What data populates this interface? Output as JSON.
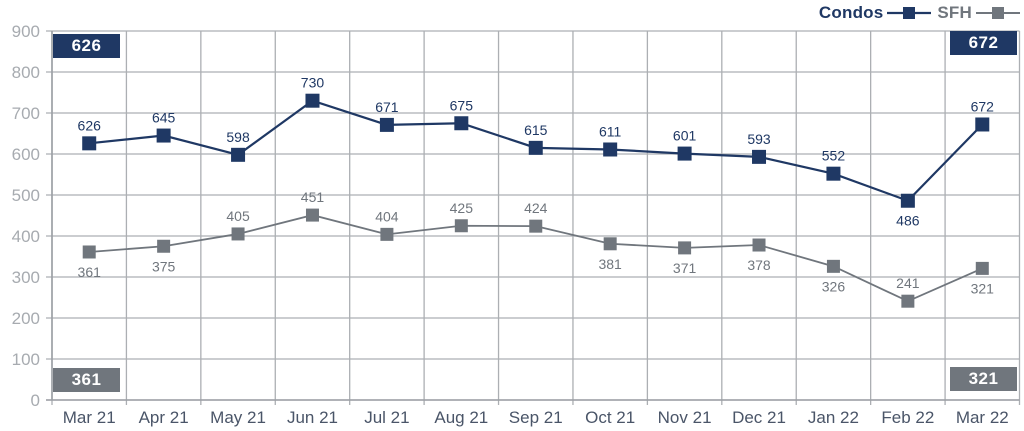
{
  "legend": {
    "items": [
      {
        "label": "Condos",
        "color": "#1F3864"
      },
      {
        "label": "SFH",
        "color": "#70767D"
      }
    ]
  },
  "callouts": [
    {
      "id": "top-left",
      "value": "626",
      "color": "#1F3864"
    },
    {
      "id": "top-right",
      "value": "672",
      "color": "#1F3864"
    },
    {
      "id": "bottom-left",
      "value": "361",
      "color": "#70767D"
    },
    {
      "id": "bottom-right",
      "value": "321",
      "color": "#70767D"
    }
  ],
  "chart_data": {
    "type": "line",
    "title": "",
    "xlabel": "",
    "ylabel": "",
    "categories": [
      "Mar 21",
      "Apr 21",
      "May 21",
      "Jun 21",
      "Jul 21",
      "Aug 21",
      "Sep 21",
      "Oct 21",
      "Nov 21",
      "Dec 21",
      "Jan 22",
      "Feb 22",
      "Mar 22"
    ],
    "series": [
      {
        "name": "Condos",
        "color": "#1F3864",
        "values": [
          626,
          645,
          598,
          730,
          671,
          675,
          615,
          611,
          601,
          593,
          552,
          486,
          672
        ],
        "label_position": [
          "above",
          "above",
          "above",
          "above",
          "above",
          "above",
          "above",
          "above",
          "above",
          "above",
          "above",
          "below",
          "above"
        ],
        "marker": "square",
        "marker_size": 14,
        "line_width": 2.2
      },
      {
        "name": "SFH",
        "color": "#70767D",
        "values": [
          361,
          375,
          405,
          451,
          404,
          425,
          424,
          381,
          371,
          378,
          326,
          241,
          321
        ],
        "label_position": [
          "below",
          "below",
          "above",
          "above",
          "above",
          "above",
          "above",
          "below",
          "below",
          "below",
          "below",
          "above",
          "below"
        ],
        "marker": "square",
        "marker_size": 13,
        "line_width": 1.8
      }
    ],
    "ylim": [
      0,
      900
    ],
    "ytick_interval": 100,
    "grid": true,
    "legend_position": "top-right",
    "colors": {
      "gridline": "#ACAFB3",
      "axis": "#9CA0A5",
      "ytick_label": "#A7ABB0",
      "xtick_label": "#4A5568",
      "background": "#FFFFFF"
    }
  }
}
